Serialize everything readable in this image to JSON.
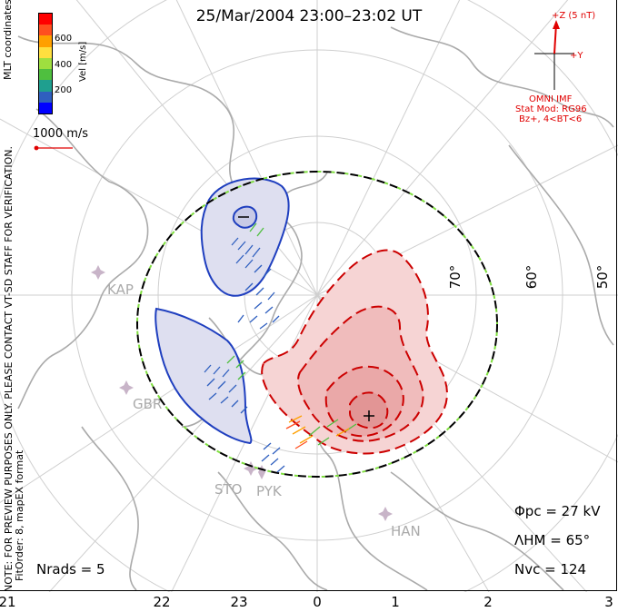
{
  "title": "25/Mar/2004 23:00–23:02 UT",
  "side_notes": {
    "preview": "NOTE: FOR PREVIEW PURPOSES ONLY. PLEASE CONTACT VT-SD STAFF FOR VERIFICATION.",
    "fit": "FitOrder: 8, mapEX format",
    "coords": "MLT coordinates"
  },
  "colorbar": {
    "label": "Vel [m/s]",
    "ticks": [
      "600",
      "400",
      "200"
    ],
    "colors": [
      "#0000ff",
      "#2f5fbf",
      "#1f9f8f",
      "#4fbf3f",
      "#9fdf3f",
      "#ffdf3f",
      "#ffa000",
      "#ff4f1f",
      "#ff0000"
    ]
  },
  "velocity_scale": {
    "label": "1000 m/s"
  },
  "imf": {
    "z_label": "+Z (5 nT)",
    "y_label": "+Y",
    "source": "OMNI IMF",
    "model_lines": [
      "Stat Mod: RG96",
      "Bz+, 4<BT<6"
    ]
  },
  "latitude_labels": [
    "70°",
    "60°",
    "50°"
  ],
  "radar_sites": [
    "KAP",
    "GBR",
    "STO",
    "PYK",
    "HAN"
  ],
  "stats": {
    "phi_pc": "Φpc = 27 kV",
    "lambda_hm": "ΛHM = 65°",
    "n_vc": "Nvc = 124",
    "n_rads": "Nrads = 5"
  },
  "mlt_ticks": [
    "21",
    "22",
    "23",
    "0",
    "1",
    "2",
    "3"
  ],
  "colors": {
    "negative_cell": "#1f3fbf",
    "positive_cell": "#cc0000",
    "imf_arrow": "#e00000",
    "coastline": "#aaaaaa"
  }
}
